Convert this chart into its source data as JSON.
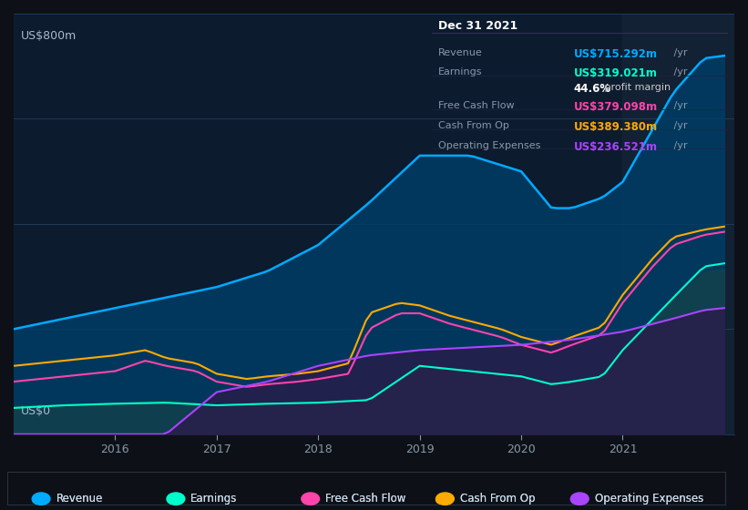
{
  "bg_color": "#0d1117",
  "plot_bg_color": "#0d1b2e",
  "grid_color": "#1e3050",
  "title_y_label": "US$800m",
  "title_y_label2": "US$0",
  "xlabel_color": "#8899aa",
  "ylabel_color": "#ccddee",
  "series_colors": {
    "revenue": "#00aaff",
    "earnings": "#00ffcc",
    "free_cash_flow": "#ff44aa",
    "cash_from_op": "#ffaa00",
    "operating_expenses": "#aa44ff"
  },
  "fill_colors": {
    "revenue": "#003366",
    "earnings": "#003322",
    "operating_expenses": "#330055"
  },
  "legend_items": [
    {
      "label": "Revenue",
      "color": "#00aaff"
    },
    {
      "label": "Earnings",
      "color": "#00ffcc"
    },
    {
      "label": "Free Cash Flow",
      "color": "#ff44aa"
    },
    {
      "label": "Cash From Op",
      "color": "#ffaa00"
    },
    {
      "label": "Operating Expenses",
      "color": "#aa44ff"
    }
  ],
  "info_box": {
    "date": "Dec 31 2021",
    "items": [
      {
        "label": "Revenue",
        "value": "US$715.292m /yr",
        "color": "#00aaff"
      },
      {
        "label": "Earnings",
        "value": "US$319.021m /yr",
        "color": "#00ffcc"
      },
      {
        "label": "",
        "value": "44.6% profit margin",
        "color": "#ffffff"
      },
      {
        "label": "Free Cash Flow",
        "value": "US$379.098m /yr",
        "color": "#ff44aa"
      },
      {
        "label": "Cash From Op",
        "value": "US$389.380m /yr",
        "color": "#ffaa00"
      },
      {
        "label": "Operating Expenses",
        "value": "US$236.521m /yr",
        "color": "#aa44ff"
      }
    ]
  },
  "x_ticks": [
    2016,
    2017,
    2018,
    2019,
    2020,
    2021
  ],
  "ylim": [
    0,
    800
  ],
  "xlim_start": 2015.0,
  "xlim_end": 2022.1,
  "highlight_x": 2021.0
}
